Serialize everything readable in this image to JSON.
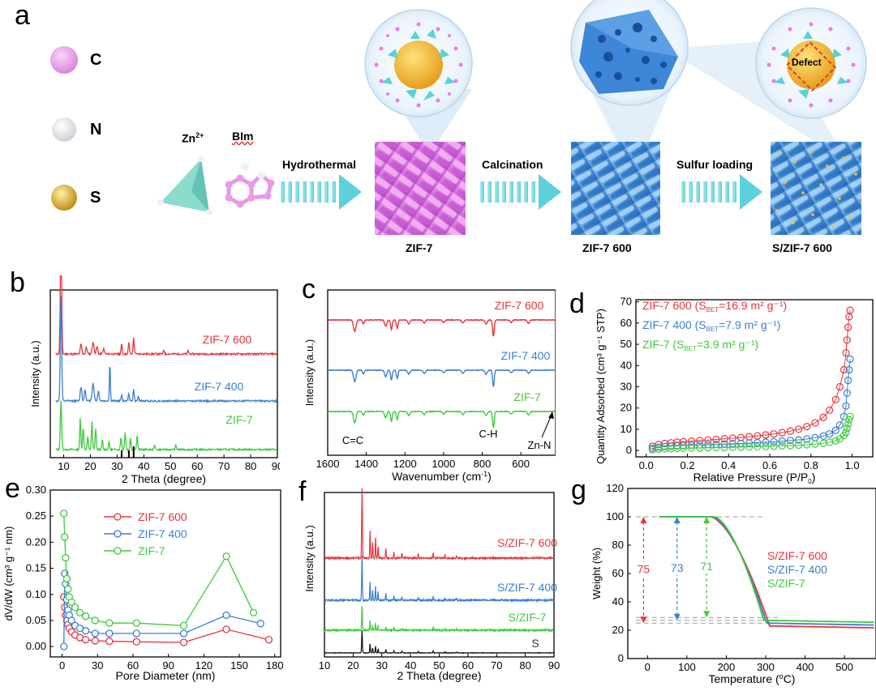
{
  "panel_a": {
    "letter": "a",
    "legend": [
      {
        "label": "C",
        "color": "#e99be8"
      },
      {
        "label": "N",
        "color": "#f2f4f6"
      },
      {
        "label": "S",
        "color": "#e8b23a"
      }
    ],
    "zn_label": "Zn",
    "zn_sup": "2+",
    "bim_label": "BIm",
    "steps": [
      "Hydrothermal",
      "Calcination",
      "Sulfur loading"
    ],
    "products": [
      "ZIF-7",
      "ZIF-7 600",
      "S/ZIF-7 600"
    ],
    "defect_label": "Defect"
  },
  "chart_data": [
    {
      "id": "b",
      "type": "line",
      "letter": "b",
      "xlabel": "2 Theta (degree)",
      "ylabel": "Intensity (a.u.)",
      "xlim": [
        5,
        90
      ],
      "xticks": [
        10,
        20,
        30,
        40,
        50,
        60,
        70,
        80,
        90
      ],
      "series": [
        {
          "name": "ZIF-7 600",
          "color": "#e8343d"
        },
        {
          "name": "ZIF-7 400",
          "color": "#3b7fd1"
        },
        {
          "name": "ZIF-7",
          "color": "#3fca3f"
        }
      ],
      "reference_peaks_2theta": [
        31.7,
        34.4,
        36.2
      ]
    },
    {
      "id": "c",
      "type": "line",
      "letter": "c",
      "xlabel": "Wavenumber (cm",
      "xlabel_sup": "-1",
      "xlabel_end": ")",
      "ylabel": "Intensity (a.u.)",
      "xlim": [
        1600,
        420
      ],
      "xticks": [
        1600,
        1400,
        1200,
        1000,
        800,
        600
      ],
      "series": [
        {
          "name": "ZIF-7 600",
          "color": "#e8343d"
        },
        {
          "name": "ZIF-7 400",
          "color": "#3b7fd1"
        },
        {
          "name": "ZIF-7",
          "color": "#3fca3f"
        }
      ],
      "annotations": [
        "C=C",
        "C-H",
        "Zn-N"
      ]
    },
    {
      "id": "d",
      "type": "scatter",
      "letter": "d",
      "xlabel": "Relative Pressure (P/P",
      "xlabel_sub": "0",
      "xlabel_end": ")",
      "ylabel": "Quantity Adsorbed (cm³ g⁻¹ STP)",
      "xlim": [
        -0.05,
        1.1
      ],
      "ylim": [
        -3,
        71
      ],
      "xticks": [
        0.0,
        0.2,
        0.4,
        0.6,
        0.8,
        1.0
      ],
      "yticks": [
        0,
        10,
        20,
        30,
        40,
        50,
        60,
        70
      ],
      "legend": [
        {
          "name": "ZIF-7 600",
          "pre": "ZIF-7 600 (S",
          "sub": "BET",
          "post": "=16.9 m² g⁻¹)"
        },
        {
          "name": "ZIF-7 400",
          "pre": "ZIF-7 400 (S",
          "sub": "BET",
          "post": "=7.9 m² g⁻¹)"
        },
        {
          "name": "ZIF-7",
          "pre": "ZIF-7 (S",
          "sub": "BET",
          "post": "=3.9 m² g⁻¹)"
        }
      ],
      "series": [
        {
          "name": "ZIF-7 600",
          "color": "#e8343d",
          "x": [
            0.03,
            0.06,
            0.09,
            0.12,
            0.15,
            0.18,
            0.22,
            0.26,
            0.3,
            0.34,
            0.38,
            0.42,
            0.46,
            0.5,
            0.54,
            0.58,
            0.62,
            0.66,
            0.7,
            0.74,
            0.78,
            0.82,
            0.86,
            0.89,
            0.92,
            0.94,
            0.96,
            0.97,
            0.975,
            0.98,
            0.985,
            0.99
          ],
          "y": [
            2.0,
            2.8,
            3.3,
            3.6,
            3.9,
            4.1,
            4.4,
            4.7,
            4.9,
            5.2,
            5.5,
            5.8,
            6.1,
            6.5,
            6.9,
            7.3,
            7.8,
            8.4,
            9.1,
            10.0,
            11.2,
            13.0,
            15.6,
            19.0,
            24.0,
            30.0,
            38.0,
            46.0,
            52.0,
            58.0,
            63.0,
            66.0
          ]
        },
        {
          "name": "ZIF-7 400",
          "color": "#3b7fd1",
          "x": [
            0.03,
            0.06,
            0.09,
            0.12,
            0.15,
            0.18,
            0.22,
            0.26,
            0.3,
            0.34,
            0.38,
            0.42,
            0.46,
            0.5,
            0.54,
            0.58,
            0.62,
            0.66,
            0.7,
            0.74,
            0.78,
            0.82,
            0.86,
            0.89,
            0.92,
            0.94,
            0.96,
            0.97,
            0.975,
            0.98,
            0.985,
            0.99
          ],
          "y": [
            1.0,
            1.5,
            1.8,
            2.0,
            2.2,
            2.3,
            2.5,
            2.6,
            2.8,
            2.9,
            3.0,
            3.2,
            3.3,
            3.5,
            3.7,
            3.9,
            4.1,
            4.4,
            4.7,
            5.0,
            5.4,
            6.0,
            6.8,
            7.8,
            9.5,
            12.0,
            16.0,
            21.0,
            27.0,
            33.0,
            38.0,
            43.0
          ]
        },
        {
          "name": "ZIF-7",
          "color": "#3fca3f",
          "x": [
            0.03,
            0.06,
            0.09,
            0.12,
            0.15,
            0.18,
            0.22,
            0.26,
            0.3,
            0.34,
            0.38,
            0.42,
            0.46,
            0.5,
            0.54,
            0.58,
            0.62,
            0.66,
            0.7,
            0.74,
            0.78,
            0.82,
            0.86,
            0.89,
            0.92,
            0.94,
            0.96,
            0.97,
            0.975,
            0.98,
            0.985,
            0.99
          ],
          "y": [
            0.3,
            0.6,
            0.8,
            0.9,
            1.0,
            1.1,
            1.2,
            1.2,
            1.3,
            1.4,
            1.4,
            1.5,
            1.6,
            1.7,
            1.8,
            1.9,
            2.0,
            2.2,
            2.3,
            2.5,
            2.7,
            3.0,
            3.4,
            3.9,
            4.6,
            5.5,
            7.0,
            8.5,
            10.5,
            12.5,
            14.5,
            16.0
          ]
        }
      ]
    },
    {
      "id": "e",
      "type": "line",
      "letter": "e",
      "xlabel": "Pore Diameter (nm)",
      "ylabel": "dV/dW (cm³ g⁻¹ nm)",
      "xlim": [
        -10,
        185
      ],
      "ylim": [
        -0.02,
        0.3
      ],
      "xticks": [
        0,
        30,
        60,
        90,
        120,
        150,
        180
      ],
      "yticks": [
        0.0,
        0.05,
        0.1,
        0.15,
        0.2,
        0.25,
        0.3
      ],
      "series": [
        {
          "name": "ZIF-7 600",
          "color": "#e8343d",
          "x": [
            1.5,
            2.2,
            3,
            4,
            5,
            6,
            8,
            11,
            15,
            20,
            28,
            40,
            63,
            103,
            139,
            175
          ],
          "y": [
            0.095,
            0.075,
            0.06,
            0.05,
            0.042,
            0.035,
            0.028,
            0.022,
            0.017,
            0.013,
            0.011,
            0.01,
            0.009,
            0.008,
            0.033,
            0.013
          ]
        },
        {
          "name": "ZIF-7 400",
          "color": "#3b7fd1",
          "x": [
            1.5,
            2.2,
            3,
            4,
            5,
            6,
            8,
            11,
            15,
            20,
            28,
            40,
            63,
            103,
            139,
            168
          ],
          "y": [
            0.0,
            0.14,
            0.12,
            0.09,
            0.07,
            0.06,
            0.05,
            0.04,
            0.035,
            0.03,
            0.025,
            0.025,
            0.025,
            0.025,
            0.06,
            0.044
          ]
        },
        {
          "name": "ZIF-7",
          "color": "#3fca3f",
          "x": [
            1.5,
            2.2,
            3,
            4,
            5,
            6,
            8,
            11,
            15,
            20,
            28,
            40,
            63,
            103,
            139,
            162
          ],
          "y": [
            0.255,
            0.21,
            0.17,
            0.13,
            0.11,
            0.095,
            0.085,
            0.075,
            0.065,
            0.058,
            0.05,
            0.045,
            0.045,
            0.04,
            0.173,
            0.065
          ]
        }
      ]
    },
    {
      "id": "f",
      "type": "line",
      "letter": "f",
      "xlabel": "2 Theta (degree)",
      "ylabel": "Intensity (a.u.)",
      "xlim": [
        10,
        90
      ],
      "xticks": [
        10,
        20,
        30,
        40,
        50,
        60,
        70,
        80,
        90
      ],
      "series": [
        {
          "name": "S/ZIF-7 600",
          "color": "#e8343d"
        },
        {
          "name": "S/ZIF-7 400",
          "color": "#3b7fd1"
        },
        {
          "name": "S/ZIF-7",
          "color": "#3fca3f"
        },
        {
          "name": "S",
          "color": "#111111"
        }
      ]
    },
    {
      "id": "g",
      "type": "line",
      "letter": "g",
      "xlabel": "Temperature (",
      "xlabel_sup": "o",
      "xlabel_end": "C)",
      "ylabel": "Weight (%)",
      "xlim": [
        -50,
        580
      ],
      "ylim": [
        0,
        120
      ],
      "xticks": [
        0,
        100,
        200,
        300,
        400,
        500
      ],
      "yticks": [
        0,
        20,
        40,
        60,
        80,
        100,
        120
      ],
      "series": [
        {
          "name": "S/ZIF-7 600",
          "color": "#e8343d",
          "final_weight": 23,
          "onset_T": 160,
          "end_T": 310
        },
        {
          "name": "S/ZIF-7 400",
          "color": "#3b7fd1",
          "final_weight": 25,
          "onset_T": 165,
          "end_T": 302
        },
        {
          "name": "S/ZIF-7",
          "color": "#3fca3f",
          "final_weight": 27,
          "onset_T": 170,
          "end_T": 295
        }
      ],
      "mass_loss_labels": [
        {
          "text": "75",
          "color": "#e8343d",
          "x": -10,
          "top": 100,
          "bottom": 25
        },
        {
          "text": "73",
          "color": "#3b7fd1",
          "x": 75,
          "top": 100,
          "bottom": 27
        },
        {
          "text": "71",
          "color": "#3fca3f",
          "x": 150,
          "top": 100,
          "bottom": 29
        }
      ]
    }
  ]
}
